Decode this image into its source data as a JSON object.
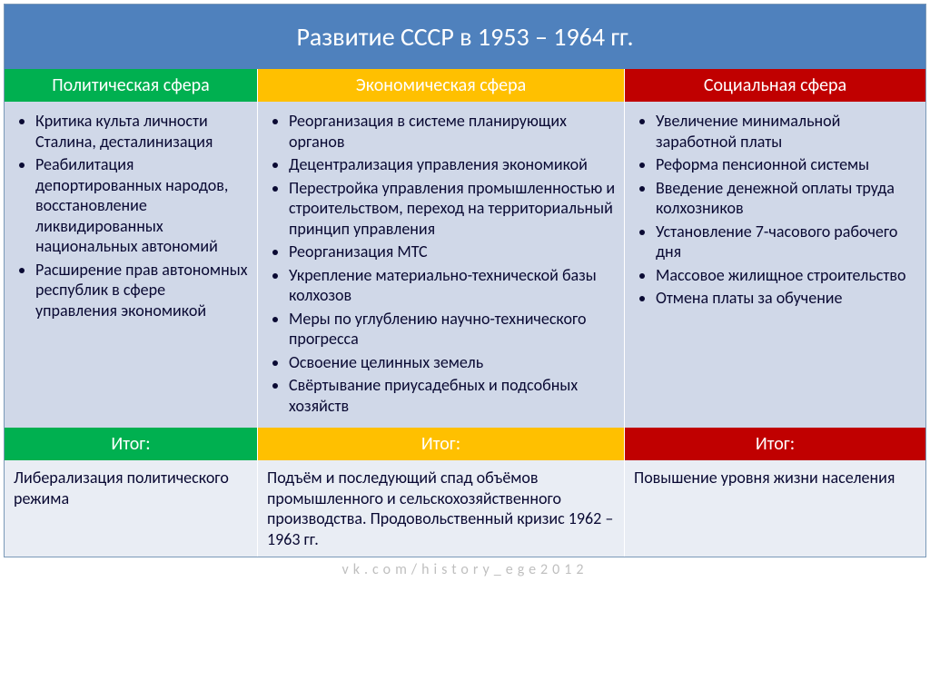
{
  "title": "Развитие СССР в 1953 – 1964 гг.",
  "colors": {
    "title_bg": "#4f81bd",
    "political": "#00b050",
    "economic": "#ffc000",
    "social": "#c00000",
    "body_bg": "#d0d8e8",
    "result_bg": "#e9edf4",
    "text": "#0a0a33"
  },
  "columns": {
    "political": {
      "header": "Политическая сфера",
      "items": [
        "Критика культа личности Сталина, десталинизация",
        "Реабилитация депортированных народов, восстановление ликвидированных национальных автономий",
        "Расширение прав автономных республик в сфере управления экономикой"
      ],
      "itog_label": "Итог:",
      "result": "Либерализация политического режима"
    },
    "economic": {
      "header": "Экономическая сфера",
      "items": [
        "Реорганизация в системе планирующих органов",
        "Децентрализация управления экономикой",
        "Перестройка управления промышленностью и строительством, переход на территориальный принцип управления",
        "Реорганизация МТС",
        "Укрепление материально-технической базы колхозов",
        "Меры по углублению научно-технического прогресса",
        "Освоение целинных земель",
        "Свёртывание приусадебных и подсобных хозяйств"
      ],
      "itog_label": "Итог:",
      "result": "Подъём и последующий спад объёмов промышленного и сельскохозяйственного производства.  Продовольственный кризис 1962 – 1963 гг."
    },
    "social": {
      "header": "Социальная сфера",
      "items": [
        "Увеличение минимальной заработной платы",
        "Реформа пенсионной системы",
        "Введение денежной оплаты труда колхозников",
        "Установление 7-часового рабочего дня",
        "Массовое жилищное строительство",
        "Отмена платы за обучение"
      ],
      "itog_label": "Итог:",
      "result": "Повышение уровня жизни населения"
    }
  },
  "credit": "vk.com/history_ege2012"
}
